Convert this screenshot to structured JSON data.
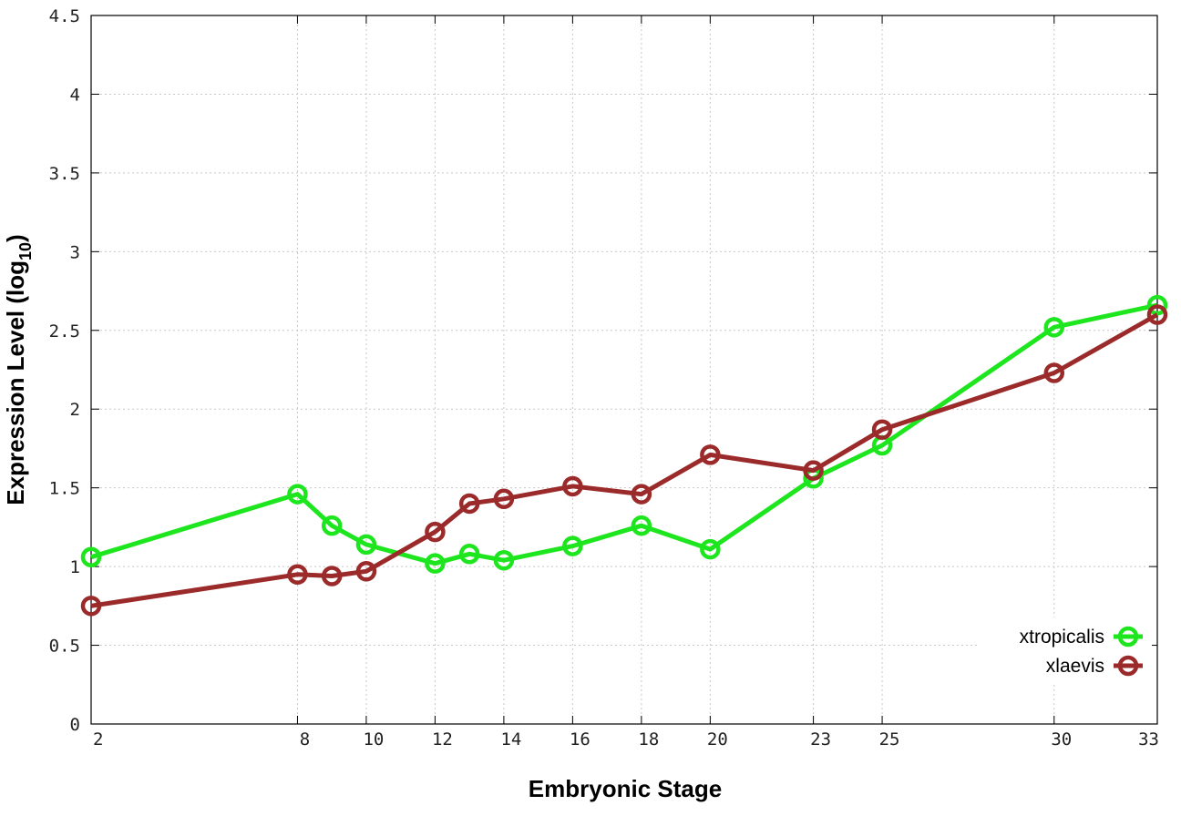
{
  "chart_data": {
    "type": "line",
    "title": "",
    "xlabel": "Embryonic Stage",
    "ylabel": {
      "main": "Expression Level (log",
      "subscript": "10",
      "close": ")"
    },
    "x": [
      2,
      8,
      9,
      10,
      12,
      13,
      14,
      16,
      18,
      20,
      23,
      25,
      30,
      33
    ],
    "x_tick_labels": [
      "2",
      "8",
      "10",
      "12",
      "14",
      "16",
      "18",
      "20",
      "23",
      "25",
      "30",
      "33"
    ],
    "y_tick_labels": [
      "0",
      "0.5",
      "1",
      "1.5",
      "2",
      "2.5",
      "3",
      "3.5",
      "4",
      "4.5"
    ],
    "xlim": [
      2,
      33
    ],
    "ylim": [
      0,
      4.5
    ],
    "grid": true,
    "legend_position": "bottom-right",
    "series": [
      {
        "name": "xtropicalis",
        "color": "#1ee61e",
        "marker": "open-circle",
        "values": [
          1.06,
          1.46,
          1.26,
          1.14,
          1.02,
          1.08,
          1.04,
          1.13,
          1.26,
          1.11,
          1.56,
          1.77,
          2.52,
          2.66
        ]
      },
      {
        "name": "xlaevis",
        "color": "#9b2a2a",
        "marker": "open-circle",
        "values": [
          0.75,
          0.95,
          0.94,
          0.97,
          1.22,
          1.4,
          1.43,
          1.51,
          1.46,
          1.71,
          1.61,
          1.87,
          2.23,
          2.6
        ]
      }
    ]
  }
}
